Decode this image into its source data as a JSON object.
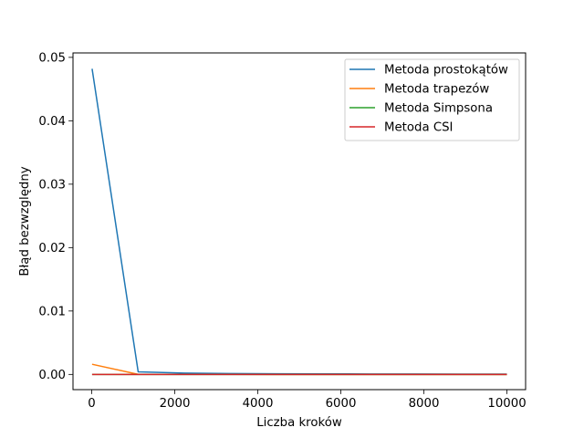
{
  "chart_data": {
    "type": "line",
    "title": "",
    "xlabel": "Liczba kroków",
    "ylabel": "Błąd bezwzględny",
    "xlim": [
      -450,
      10450
    ],
    "ylim": [
      -0.0024,
      0.0507
    ],
    "xticks": [
      0,
      2000,
      4000,
      6000,
      8000,
      10000
    ],
    "xtick_labels": [
      "0",
      "2000",
      "4000",
      "6000",
      "8000",
      "10000"
    ],
    "yticks": [
      0.0,
      0.01,
      0.02,
      0.03,
      0.04,
      0.05
    ],
    "ytick_labels": [
      "0.00",
      "0.01",
      "0.02",
      "0.03",
      "0.04",
      "0.05"
    ],
    "grid": false,
    "legend_position": "top-right",
    "x": [
      10,
      1120,
      2230,
      3340,
      4450,
      5560,
      6670,
      7780,
      8890,
      10000
    ],
    "series": [
      {
        "name": "Metoda prostokątów",
        "color": "#1f77b4",
        "values": [
          0.0482,
          0.0004,
          0.0002,
          0.00014,
          0.0001,
          8e-05,
          7e-05,
          6e-05,
          5e-05,
          5e-05
        ]
      },
      {
        "name": "Metoda trapezów",
        "color": "#ff7f0e",
        "values": [
          0.0016,
          1e-05,
          4e-06,
          2e-06,
          1e-06,
          1e-06,
          5e-07,
          4e-07,
          3e-07,
          3e-07
        ]
      },
      {
        "name": "Metoda Simpsona",
        "color": "#2ca02c",
        "values": [
          0,
          0,
          0,
          0,
          0,
          0,
          0,
          0,
          0,
          0
        ]
      },
      {
        "name": "Metoda CSI",
        "color": "#d62728",
        "values": [
          0,
          0,
          0,
          0,
          0,
          0,
          0,
          0,
          0,
          0
        ]
      }
    ]
  }
}
